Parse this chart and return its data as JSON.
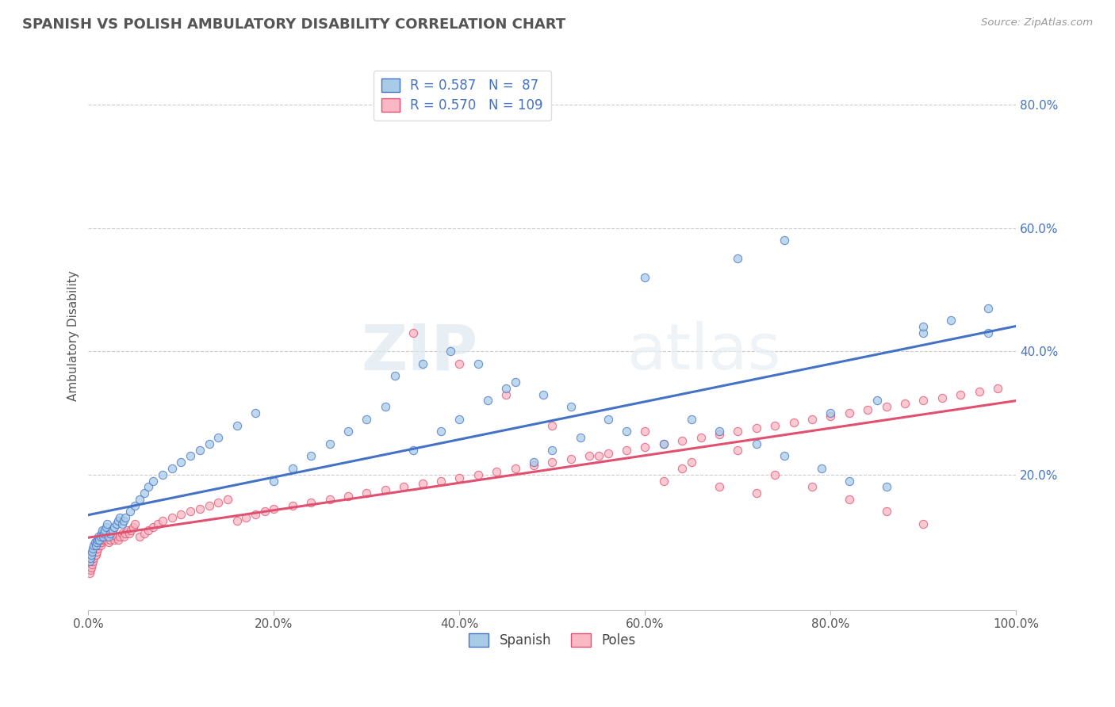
{
  "title": "SPANISH VS POLISH AMBULATORY DISABILITY CORRELATION CHART",
  "source": "Source: ZipAtlas.com",
  "ylabel": "Ambulatory Disability",
  "xlim": [
    0.0,
    1.0
  ],
  "ylim": [
    -0.02,
    0.87
  ],
  "xtick_labels": [
    "0.0%",
    "20.0%",
    "40.0%",
    "60.0%",
    "80.0%",
    "100.0%"
  ],
  "xtick_vals": [
    0.0,
    0.2,
    0.4,
    0.6,
    0.8,
    1.0
  ],
  "ytick_labels": [
    "20.0%",
    "40.0%",
    "60.0%",
    "80.0%"
  ],
  "ytick_vals": [
    0.2,
    0.4,
    0.6,
    0.8
  ],
  "spanish_color": "#a8cce8",
  "poles_color": "#f9b8c4",
  "spanish_line_color": "#4472c4",
  "poles_line_color": "#e05070",
  "R_spanish": 0.587,
  "N_spanish": 87,
  "R_poles": 0.57,
  "N_poles": 109,
  "legend_spanish": "Spanish",
  "legend_poles": "Poles",
  "watermark_zip": "ZIP",
  "watermark_atlas": "atlas",
  "background_color": "#ffffff",
  "grid_color": "#cccccc",
  "title_color": "#555555",
  "spanish_x": [
    0.001,
    0.002,
    0.003,
    0.004,
    0.005,
    0.006,
    0.007,
    0.008,
    0.009,
    0.01,
    0.011,
    0.012,
    0.013,
    0.014,
    0.015,
    0.016,
    0.017,
    0.018,
    0.019,
    0.02,
    0.022,
    0.024,
    0.026,
    0.028,
    0.03,
    0.032,
    0.034,
    0.036,
    0.038,
    0.04,
    0.045,
    0.05,
    0.055,
    0.06,
    0.065,
    0.07,
    0.08,
    0.09,
    0.1,
    0.11,
    0.12,
    0.13,
    0.14,
    0.16,
    0.18,
    0.2,
    0.22,
    0.24,
    0.26,
    0.28,
    0.3,
    0.32,
    0.35,
    0.38,
    0.4,
    0.43,
    0.45,
    0.48,
    0.5,
    0.53,
    0.33,
    0.36,
    0.39,
    0.42,
    0.46,
    0.49,
    0.52,
    0.56,
    0.58,
    0.62,
    0.65,
    0.68,
    0.72,
    0.75,
    0.79,
    0.82,
    0.86,
    0.9,
    0.93,
    0.97,
    0.6,
    0.7,
    0.75,
    0.8,
    0.85,
    0.9,
    0.97
  ],
  "spanish_y": [
    0.06,
    0.065,
    0.07,
    0.075,
    0.08,
    0.085,
    0.09,
    0.085,
    0.09,
    0.095,
    0.1,
    0.095,
    0.1,
    0.105,
    0.11,
    0.1,
    0.105,
    0.11,
    0.115,
    0.12,
    0.1,
    0.105,
    0.11,
    0.115,
    0.12,
    0.125,
    0.13,
    0.12,
    0.125,
    0.13,
    0.14,
    0.15,
    0.16,
    0.17,
    0.18,
    0.19,
    0.2,
    0.21,
    0.22,
    0.23,
    0.24,
    0.25,
    0.26,
    0.28,
    0.3,
    0.19,
    0.21,
    0.23,
    0.25,
    0.27,
    0.29,
    0.31,
    0.24,
    0.27,
    0.29,
    0.32,
    0.34,
    0.22,
    0.24,
    0.26,
    0.36,
    0.38,
    0.4,
    0.38,
    0.35,
    0.33,
    0.31,
    0.29,
    0.27,
    0.25,
    0.29,
    0.27,
    0.25,
    0.23,
    0.21,
    0.19,
    0.18,
    0.43,
    0.45,
    0.47,
    0.52,
    0.55,
    0.58,
    0.3,
    0.32,
    0.44,
    0.43
  ],
  "poles_x": [
    0.001,
    0.002,
    0.003,
    0.004,
    0.005,
    0.006,
    0.007,
    0.008,
    0.009,
    0.01,
    0.011,
    0.012,
    0.013,
    0.014,
    0.015,
    0.016,
    0.017,
    0.018,
    0.019,
    0.02,
    0.022,
    0.024,
    0.026,
    0.028,
    0.03,
    0.032,
    0.034,
    0.036,
    0.038,
    0.04,
    0.042,
    0.044,
    0.046,
    0.048,
    0.05,
    0.055,
    0.06,
    0.065,
    0.07,
    0.075,
    0.08,
    0.09,
    0.1,
    0.11,
    0.12,
    0.13,
    0.14,
    0.15,
    0.16,
    0.17,
    0.18,
    0.19,
    0.2,
    0.22,
    0.24,
    0.26,
    0.28,
    0.3,
    0.32,
    0.34,
    0.36,
    0.38,
    0.4,
    0.42,
    0.44,
    0.46,
    0.48,
    0.5,
    0.52,
    0.54,
    0.56,
    0.58,
    0.6,
    0.62,
    0.64,
    0.66,
    0.68,
    0.7,
    0.72,
    0.74,
    0.76,
    0.78,
    0.8,
    0.82,
    0.84,
    0.86,
    0.88,
    0.9,
    0.92,
    0.94,
    0.96,
    0.98,
    0.35,
    0.4,
    0.45,
    0.5,
    0.55,
    0.6,
    0.65,
    0.7,
    0.62,
    0.64,
    0.68,
    0.72,
    0.74,
    0.78,
    0.82,
    0.86,
    0.9
  ],
  "poles_y": [
    0.04,
    0.045,
    0.05,
    0.055,
    0.06,
    0.065,
    0.07,
    0.07,
    0.075,
    0.08,
    0.085,
    0.09,
    0.085,
    0.09,
    0.095,
    0.1,
    0.095,
    0.1,
    0.095,
    0.1,
    0.09,
    0.095,
    0.1,
    0.095,
    0.1,
    0.095,
    0.1,
    0.105,
    0.1,
    0.105,
    0.11,
    0.105,
    0.11,
    0.115,
    0.12,
    0.1,
    0.105,
    0.11,
    0.115,
    0.12,
    0.125,
    0.13,
    0.135,
    0.14,
    0.145,
    0.15,
    0.155,
    0.16,
    0.125,
    0.13,
    0.135,
    0.14,
    0.145,
    0.15,
    0.155,
    0.16,
    0.165,
    0.17,
    0.175,
    0.18,
    0.185,
    0.19,
    0.195,
    0.2,
    0.205,
    0.21,
    0.215,
    0.22,
    0.225,
    0.23,
    0.235,
    0.24,
    0.245,
    0.25,
    0.255,
    0.26,
    0.265,
    0.27,
    0.275,
    0.28,
    0.285,
    0.29,
    0.295,
    0.3,
    0.305,
    0.31,
    0.315,
    0.32,
    0.325,
    0.33,
    0.335,
    0.34,
    0.43,
    0.38,
    0.33,
    0.28,
    0.23,
    0.27,
    0.22,
    0.24,
    0.19,
    0.21,
    0.18,
    0.17,
    0.2,
    0.18,
    0.16,
    0.14,
    0.12
  ]
}
